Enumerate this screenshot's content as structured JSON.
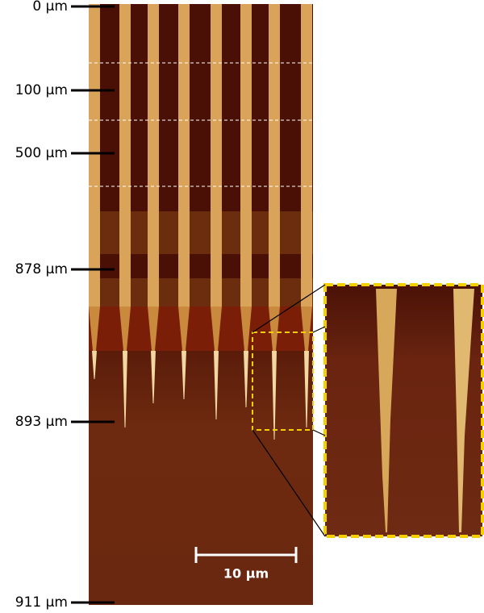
{
  "depth_labels": [
    "0 µm",
    "100 µm",
    "500 µm",
    "878 µm",
    "893 µm",
    "911 µm"
  ],
  "scale_bar": {
    "label": "10 µm"
  }
}
